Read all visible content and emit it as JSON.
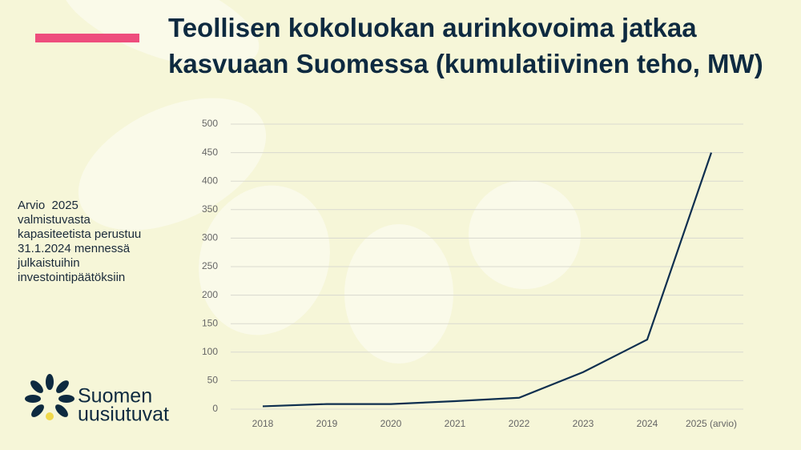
{
  "title": "Teollisen kokoluokan aurinkovoima jatkaa kasvuaan Suomessa (kumulatiivinen teho, MW)",
  "note": [
    "Arvio  2025",
    "valmistuvasta",
    "kapasiteetista perustuu",
    "31.1.2024 mennessä",
    "julkaistuihin",
    "investointipäätöksiin"
  ],
  "logo": [
    "Suomen",
    "uusiutuvat"
  ],
  "chart_data": {
    "type": "line",
    "categories": [
      "2018",
      "2019",
      "2020",
      "2021",
      "2022",
      "2023",
      "2024",
      "2025 (arvio)"
    ],
    "series": [
      {
        "color": "#0e2f4f",
        "values": [
          5,
          9,
          9,
          14,
          20,
          65,
          122,
          450
        ]
      }
    ],
    "ylim": [
      0,
      500
    ],
    "yticks": [
      0,
      50,
      100,
      150,
      200,
      250,
      300,
      350,
      400,
      450,
      500
    ],
    "grid": true
  }
}
